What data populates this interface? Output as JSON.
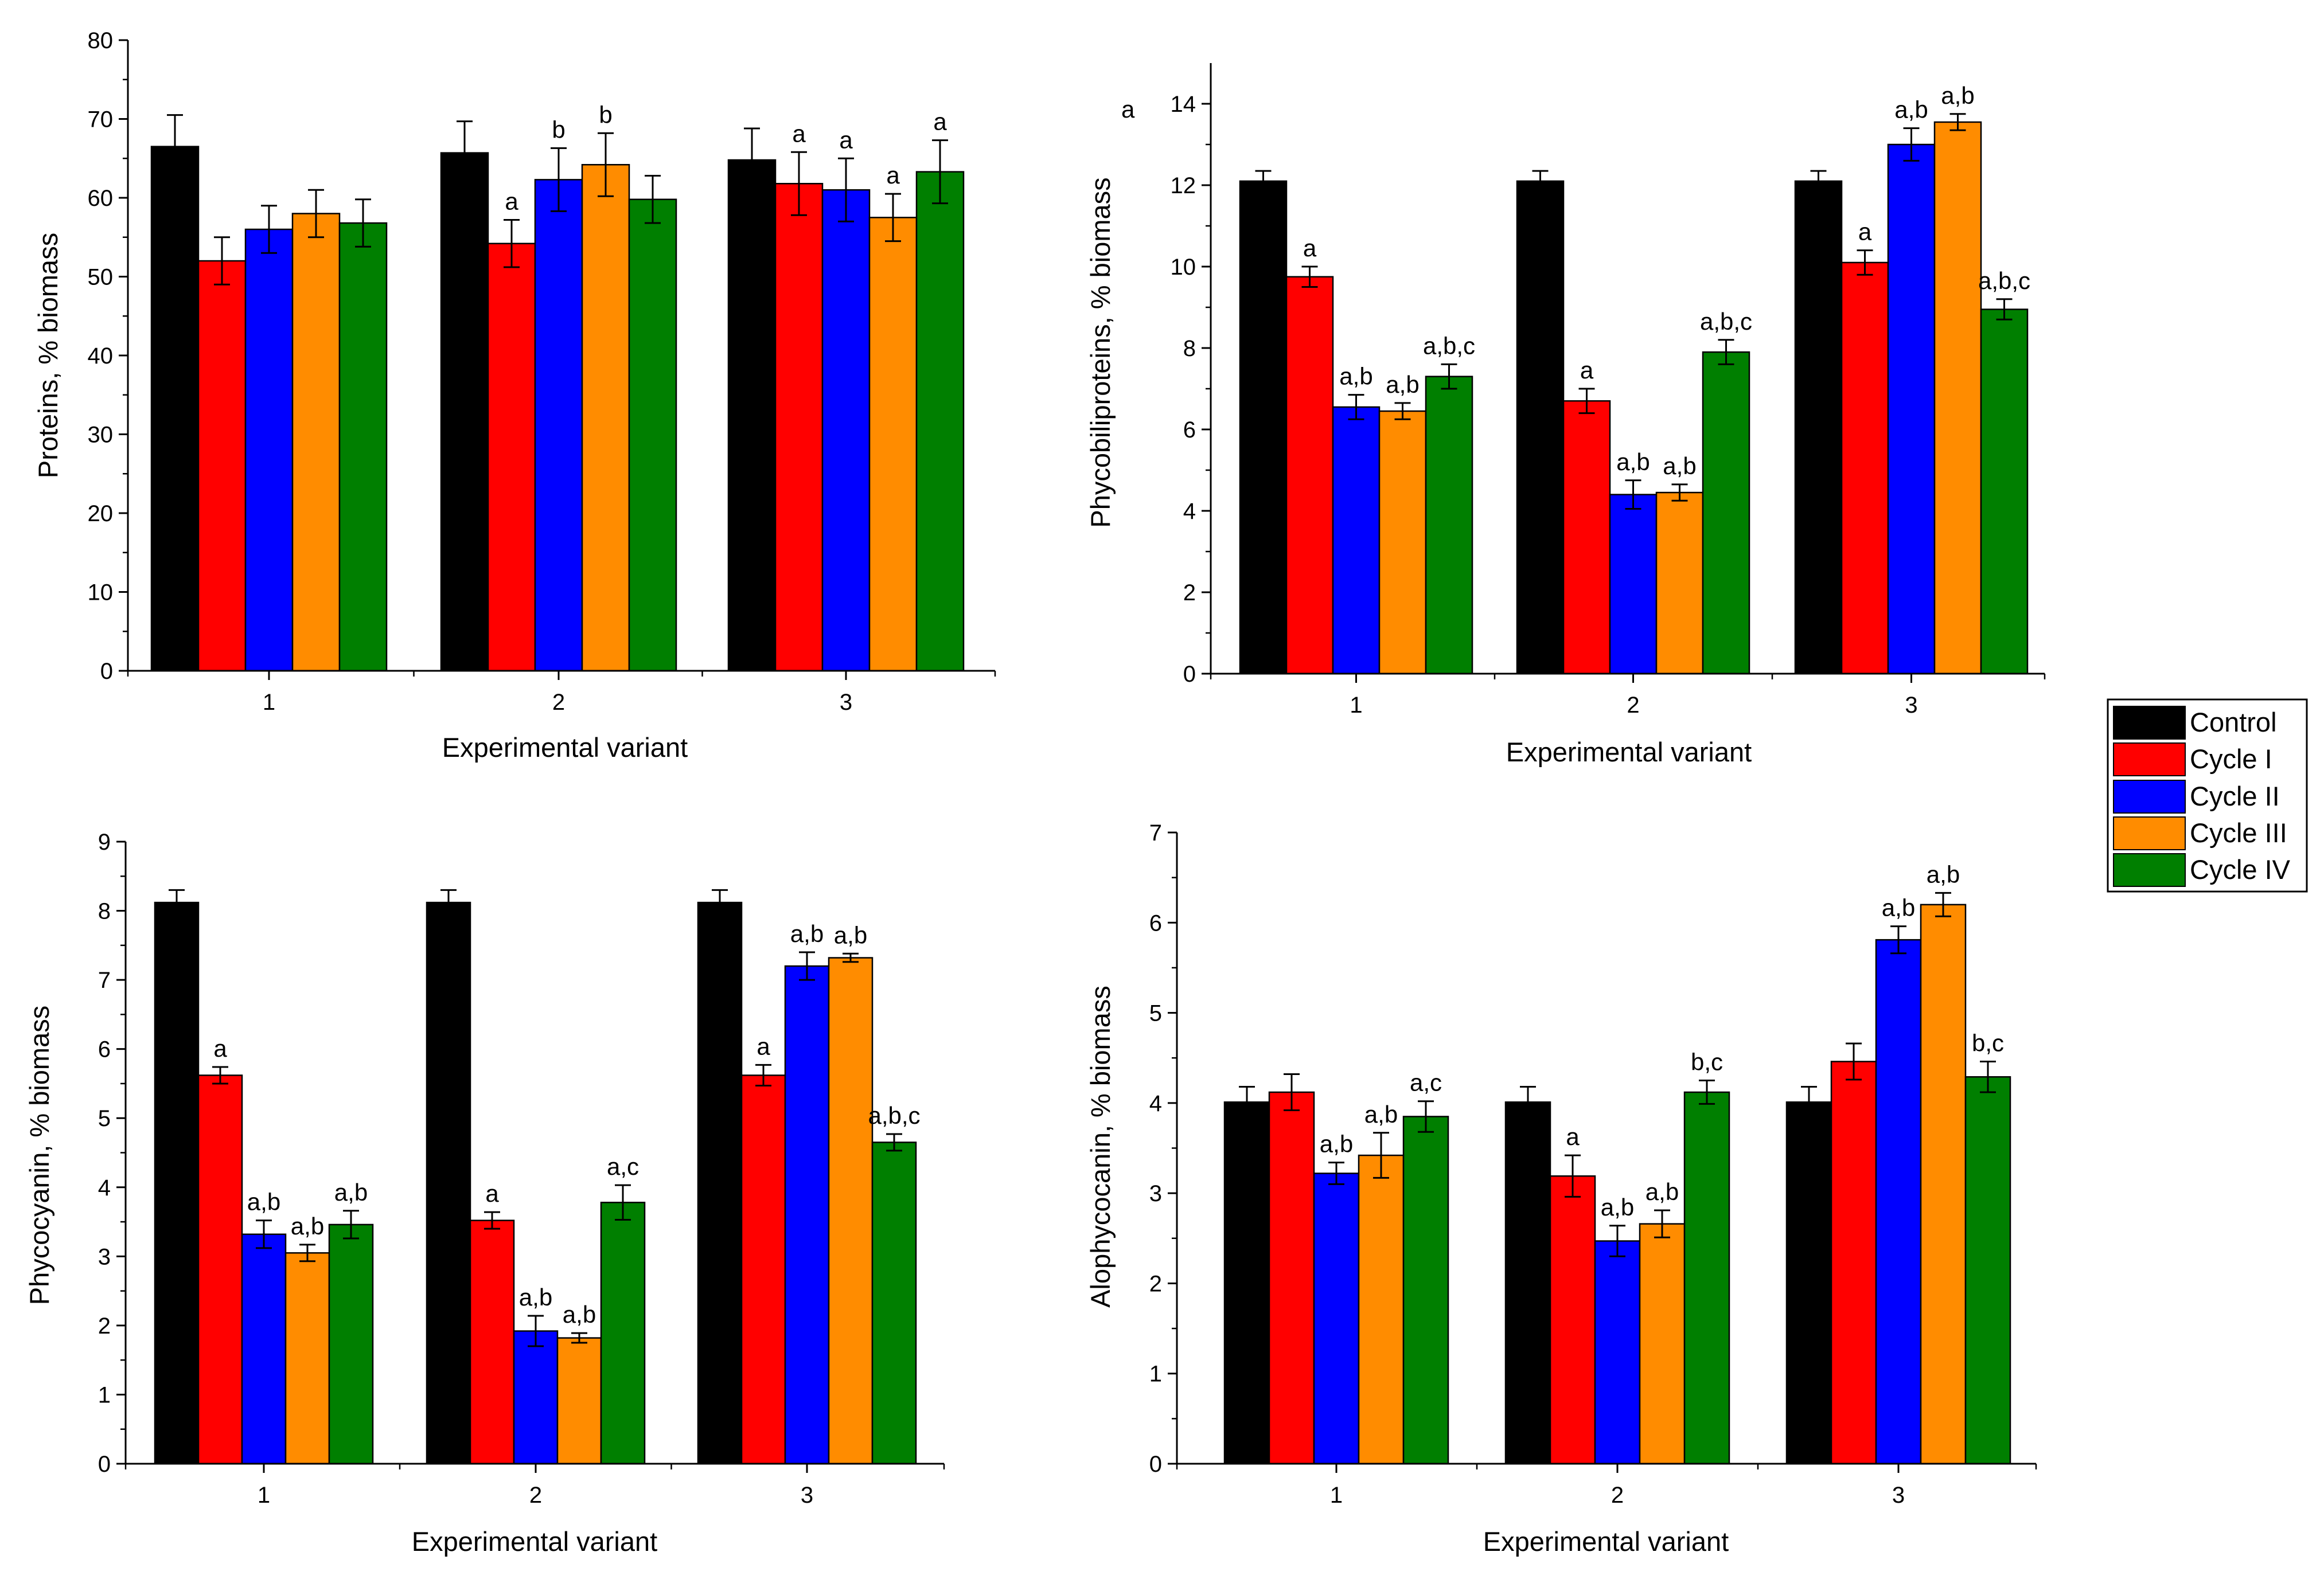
{
  "legend": {
    "entries": [
      {
        "name": "Control",
        "color": "#000000"
      },
      {
        "name": "Cycle I",
        "color": "#ff0000"
      },
      {
        "name": "Cycle II",
        "color": "#0000ff"
      },
      {
        "name": "Cycle III",
        "color": "#ff8c00"
      },
      {
        "name": "Cycle IV",
        "color": "#007f00"
      }
    ]
  },
  "stray_label": "a",
  "chart_data": [
    {
      "type": "bar",
      "panel": "top-left",
      "title": "",
      "xlabel": "Experimental variant",
      "ylabel": "Proteins, % biomass",
      "ylim": [
        0,
        80
      ],
      "yticks": [
        0,
        10,
        20,
        30,
        40,
        50,
        60,
        70,
        80
      ],
      "categories": [
        "1",
        "2",
        "3"
      ],
      "series": [
        {
          "name": "Control",
          "values": [
            66.5,
            65.7,
            64.8
          ],
          "errors": [
            4.0,
            4.0,
            4.0
          ],
          "labels": [
            "",
            "",
            ""
          ]
        },
        {
          "name": "Cycle I",
          "values": [
            52.0,
            54.2,
            61.8
          ],
          "errors": [
            3.0,
            3.0,
            4.0
          ],
          "labels": [
            "",
            "a",
            "a"
          ]
        },
        {
          "name": "Cycle II",
          "values": [
            56.0,
            62.3,
            61.0
          ],
          "errors": [
            3.0,
            4.0,
            4.0
          ],
          "labels": [
            "",
            "b",
            "a"
          ]
        },
        {
          "name": "Cycle III",
          "values": [
            58.0,
            64.2,
            57.5
          ],
          "errors": [
            3.0,
            4.0,
            3.0
          ],
          "labels": [
            "",
            "b",
            "a"
          ]
        },
        {
          "name": "Cycle IV",
          "values": [
            56.8,
            59.8,
            63.3
          ],
          "errors": [
            3.0,
            3.0,
            4.0
          ],
          "labels": [
            "",
            "",
            "a"
          ]
        }
      ]
    },
    {
      "type": "bar",
      "panel": "top-right",
      "title": "",
      "xlabel": "Experimental variant",
      "ylabel": "Phycobiliproteins, % biomass",
      "ylim": [
        0,
        15
      ],
      "yticks": [
        0,
        2,
        4,
        6,
        8,
        10,
        12,
        14
      ],
      "categories": [
        "1",
        "2",
        "3"
      ],
      "series": [
        {
          "name": "Control",
          "values": [
            12.1,
            12.1,
            12.1
          ],
          "errors": [
            0.25,
            0.25,
            0.25
          ],
          "labels": [
            "",
            "",
            ""
          ]
        },
        {
          "name": "Cycle I",
          "values": [
            9.75,
            6.7,
            10.1
          ],
          "errors": [
            0.25,
            0.3,
            0.3
          ],
          "labels": [
            "a",
            "a",
            "a"
          ]
        },
        {
          "name": "Cycle II",
          "values": [
            6.55,
            4.4,
            13.0
          ],
          "errors": [
            0.3,
            0.35,
            0.4
          ],
          "labels": [
            "a,b",
            "a,b",
            "a,b"
          ]
        },
        {
          "name": "Cycle III",
          "values": [
            6.45,
            4.45,
            13.55
          ],
          "errors": [
            0.2,
            0.2,
            0.2
          ],
          "labels": [
            "a,b",
            "a,b",
            "a,b"
          ]
        },
        {
          "name": "Cycle IV",
          "values": [
            7.3,
            7.9,
            8.95
          ],
          "errors": [
            0.3,
            0.3,
            0.25
          ],
          "labels": [
            "a,b,c",
            "a,b,c",
            "a,b,c"
          ]
        }
      ]
    },
    {
      "type": "bar",
      "panel": "bottom-left",
      "title": "",
      "xlabel": "Experimental variant",
      "ylabel": "Phycocyanin, % biomass",
      "ylim": [
        0,
        9
      ],
      "yticks": [
        0,
        1,
        2,
        3,
        4,
        5,
        6,
        7,
        8,
        9
      ],
      "categories": [
        "1",
        "2",
        "3"
      ],
      "series": [
        {
          "name": "Control",
          "values": [
            8.12,
            8.12,
            8.12
          ],
          "errors": [
            0.18,
            0.18,
            0.18
          ],
          "labels": [
            "",
            "",
            ""
          ]
        },
        {
          "name": "Cycle I",
          "values": [
            5.62,
            3.52,
            5.62
          ],
          "errors": [
            0.12,
            0.12,
            0.15
          ],
          "labels": [
            "a",
            "a",
            "a"
          ]
        },
        {
          "name": "Cycle II",
          "values": [
            3.32,
            1.92,
            7.2
          ],
          "errors": [
            0.2,
            0.22,
            0.2
          ],
          "labels": [
            "a,b",
            "a,b",
            "a,b"
          ]
        },
        {
          "name": "Cycle III",
          "values": [
            3.05,
            1.82,
            7.32
          ],
          "errors": [
            0.12,
            0.07,
            0.06
          ],
          "labels": [
            "a,b",
            "a,b",
            "a,b"
          ]
        },
        {
          "name": "Cycle IV",
          "values": [
            3.46,
            3.78,
            4.65
          ],
          "errors": [
            0.2,
            0.25,
            0.12
          ],
          "labels": [
            "a,b",
            "a,c",
            "a,b,c"
          ]
        }
      ]
    },
    {
      "type": "bar",
      "panel": "bottom-right",
      "title": "",
      "xlabel": "Experimental variant",
      "ylabel": "Alophycocanin, % biomass",
      "ylim": [
        0,
        7
      ],
      "yticks": [
        0,
        1,
        2,
        3,
        4,
        5,
        6,
        7
      ],
      "categories": [
        "1",
        "2",
        "3"
      ],
      "series": [
        {
          "name": "Control",
          "values": [
            4.01,
            4.01,
            4.01
          ],
          "errors": [
            0.17,
            0.17,
            0.17
          ],
          "labels": [
            "",
            "",
            ""
          ]
        },
        {
          "name": "Cycle I",
          "values": [
            4.12,
            3.19,
            4.46
          ],
          "errors": [
            0.2,
            0.23,
            0.2
          ],
          "labels": [
            "",
            "a",
            ""
          ]
        },
        {
          "name": "Cycle II",
          "values": [
            3.22,
            2.47,
            5.81
          ],
          "errors": [
            0.12,
            0.17,
            0.15
          ],
          "labels": [
            "a,b",
            "a,b",
            "a,b"
          ]
        },
        {
          "name": "Cycle III",
          "values": [
            3.42,
            2.66,
            6.2
          ],
          "errors": [
            0.25,
            0.15,
            0.13
          ],
          "labels": [
            "a,b",
            "a,b",
            "a,b"
          ]
        },
        {
          "name": "Cycle IV",
          "values": [
            3.85,
            4.12,
            4.29
          ],
          "errors": [
            0.17,
            0.13,
            0.17
          ],
          "labels": [
            "a,c",
            "b,c",
            "b,c"
          ]
        }
      ]
    }
  ]
}
